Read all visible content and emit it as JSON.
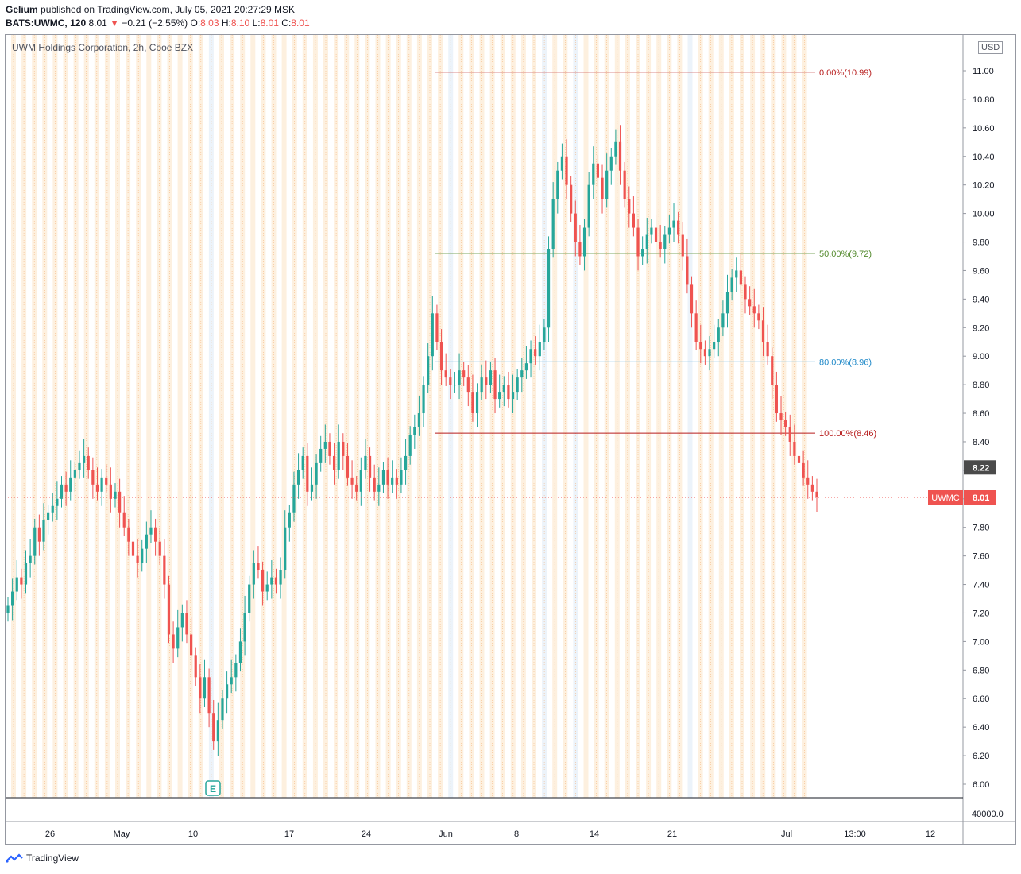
{
  "header": {
    "publisher": "Gelium",
    "published_text": "published on TradingView.com, July 05, 2021 20:27:29 MSK",
    "symbol_line": "BATS:UWMC, 120",
    "last": "8.01",
    "change": "−0.21 (−2.55%)",
    "o_label": "O:",
    "o_val": "8.03",
    "h_label": "H:",
    "h_val": "8.10",
    "l_label": "L:",
    "l_val": "8.01",
    "c_label": "C:",
    "c_val": "8.01"
  },
  "legend_title": "UWM Holdings Corporation, 2h, Cboe BZX",
  "currency": "USD",
  "footer_brand": "TradingView",
  "colors": {
    "up": "#26a69a",
    "down": "#ef5350",
    "fib_0": "#b71c1c",
    "fib_50": "#558b2f",
    "fib_80": "#1e88c8",
    "fib_100": "#b71c1c",
    "session_orange": "#fbe3c4",
    "session_blue": "#dce9f6"
  },
  "chart_data": {
    "type": "candlestick",
    "title": "UWM Holdings Corporation, 2h, Cboe BZX",
    "y_range": [
      5.9,
      11.1
    ],
    "y_ticks": [
      "11.00",
      "10.80",
      "10.60",
      "10.40",
      "10.20",
      "10.00",
      "9.80",
      "9.60",
      "9.40",
      "9.20",
      "9.00",
      "8.80",
      "8.60",
      "8.40",
      "8.20",
      "8.00",
      "7.80",
      "7.60",
      "7.40",
      "7.20",
      "7.00",
      "6.80",
      "6.60",
      "6.40",
      "6.20",
      "6.00"
    ],
    "volume_tick": "40000.0",
    "x_ticks": [
      "26",
      "May",
      "10",
      "17",
      "24",
      "Jun",
      "8",
      "14",
      "21",
      "Jul",
      "13:00",
      "12"
    ],
    "last_price_label": "UWMC",
    "last_price": "8.01",
    "marker_price": "8.22",
    "earnings_marker": "E",
    "fib_levels": [
      {
        "label": "0.00%(10.99)",
        "price": 10.99
      },
      {
        "label": "50.00%(9.72)",
        "price": 9.72
      },
      {
        "label": "80.00%(8.96)",
        "price": 8.96
      },
      {
        "label": "100.00%(8.46)",
        "price": 8.46
      }
    ],
    "closes": [
      7.25,
      7.35,
      7.45,
      7.4,
      7.55,
      7.6,
      7.8,
      7.7,
      7.85,
      7.9,
      7.95,
      8.0,
      8.1,
      8.05,
      8.15,
      8.2,
      8.25,
      8.3,
      8.2,
      8.1,
      8.05,
      8.15,
      8.1,
      8.0,
      8.05,
      7.9,
      7.8,
      7.7,
      7.6,
      7.55,
      7.65,
      7.75,
      7.8,
      7.7,
      7.6,
      7.4,
      7.05,
      6.95,
      7.1,
      7.2,
      7.05,
      6.9,
      6.75,
      6.6,
      6.75,
      6.5,
      6.3,
      6.45,
      6.6,
      6.7,
      6.75,
      6.85,
      7.0,
      7.2,
      7.4,
      7.55,
      7.5,
      7.35,
      7.4,
      7.45,
      7.4,
      7.5,
      7.8,
      7.9,
      8.1,
      8.2,
      8.3,
      8.05,
      8.1,
      8.25,
      8.35,
      8.4,
      8.3,
      8.2,
      8.4,
      8.3,
      8.15,
      8.1,
      8.05,
      8.2,
      8.3,
      8.15,
      8.05,
      8.1,
      8.2,
      8.1,
      8.15,
      8.1,
      8.2,
      8.3,
      8.45,
      8.5,
      8.6,
      8.8,
      9.0,
      9.3,
      9.1,
      8.9,
      8.85,
      8.8,
      8.8,
      8.9,
      8.85,
      8.75,
      8.6,
      8.75,
      8.85,
      8.8,
      8.9,
      8.7,
      8.75,
      8.8,
      8.7,
      8.75,
      8.85,
      8.9,
      8.95,
      9.05,
      9.0,
      9.1,
      9.2,
      9.75,
      10.1,
      10.3,
      10.4,
      10.2,
      10.0,
      9.8,
      9.7,
      9.9,
      10.2,
      10.35,
      10.25,
      10.1,
      10.3,
      10.4,
      10.5,
      10.3,
      10.1,
      10.0,
      9.9,
      9.7,
      9.75,
      9.85,
      9.9,
      9.8,
      9.75,
      9.85,
      9.9,
      9.95,
      9.85,
      9.7,
      9.5,
      9.3,
      9.1,
      9.05,
      9.0,
      9.05,
      9.1,
      9.2,
      9.3,
      9.45,
      9.55,
      9.6,
      9.5,
      9.4,
      9.35,
      9.3,
      9.25,
      9.1,
      9.0,
      8.8,
      8.6,
      8.55,
      8.5,
      8.4,
      8.3,
      8.25,
      8.15,
      8.1,
      8.05,
      8.01
    ]
  }
}
